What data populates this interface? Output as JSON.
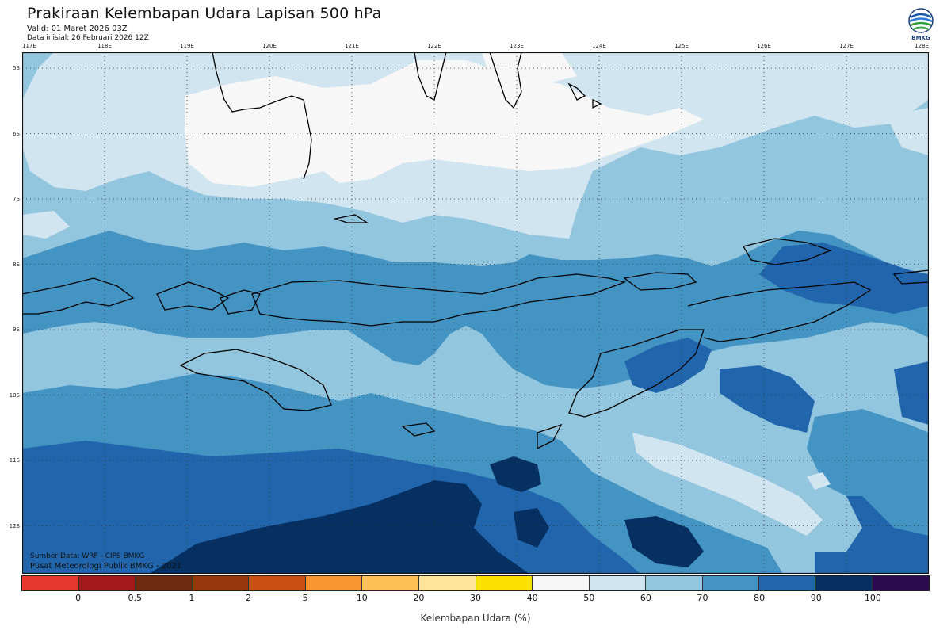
{
  "header": {
    "title": "Prakiraan Kelembapan Udara Lapisan 500 hPa",
    "valid": "Valid: 01 Maret 2026 03Z",
    "init": "Data inisial: 26 Februari 2026 12Z"
  },
  "logo": {
    "icon": "bmkg-logo-icon",
    "text": "BMKG"
  },
  "axes": {
    "lon_labels": [
      "117E",
      "118E",
      "119E",
      "120E",
      "121E",
      "122E",
      "123E",
      "124E",
      "125E",
      "126E",
      "127E",
      "128E"
    ],
    "lat_labels": [
      "5S",
      "6S",
      "7S",
      "8S",
      "9S",
      "10S",
      "11S",
      "12S"
    ]
  },
  "credits": {
    "source": "Sumber Data: WRF - CIPS BMKG",
    "publisher": "Pusat Meteorologi Publik BMKG - 2021"
  },
  "legend": {
    "colors": [
      "#e8372f",
      "#a31818",
      "#6e2a10",
      "#97380c",
      "#c85012",
      "#fa9530",
      "#fcc056",
      "#fde49a",
      "#fae000",
      "#f7f7f7",
      "#d1e5f0",
      "#92c5de",
      "#4393c3",
      "#2166ac",
      "#053061",
      "#2d0a4e"
    ],
    "tick_labels": [
      "0",
      "0.5",
      "1",
      "2",
      "5",
      "10",
      "20",
      "30",
      "40",
      "50",
      "60",
      "70",
      "80",
      "90",
      "100"
    ],
    "title": "Kelembapan Udara (%)"
  }
}
